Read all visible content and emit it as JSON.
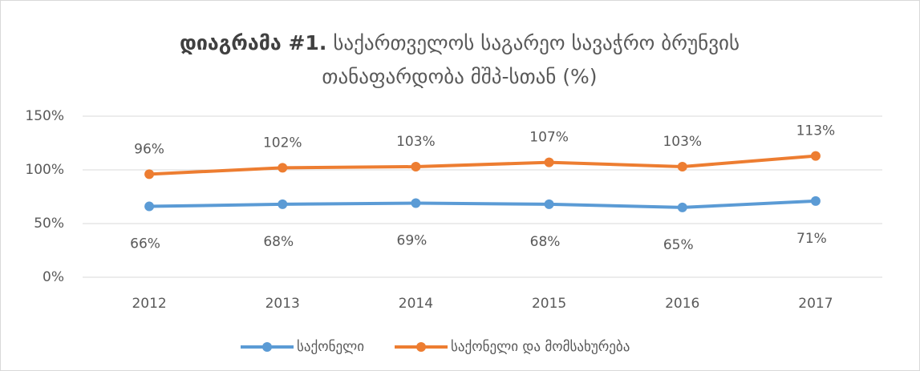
{
  "chart_data": {
    "type": "line",
    "title_prefix": "დიაგრამა #1.",
    "title_lines": [
      "საქართველოს საგარეო სავაჭრო ბრუნვის",
      "თანაფარდობა მშპ-სთან (%)"
    ],
    "categories": [
      "2012",
      "2013",
      "2014",
      "2015",
      "2016",
      "2017"
    ],
    "series": [
      {
        "name": "საქონელი",
        "color": "#5b9bd5",
        "values": [
          66,
          68,
          69,
          68,
          65,
          71
        ],
        "value_labels": [
          "66%",
          "68%",
          "69%",
          "68%",
          "65%",
          "71%"
        ]
      },
      {
        "name": "საქონელი და მომსახურება",
        "color": "#ed7d31",
        "values": [
          96,
          102,
          103,
          107,
          103,
          113
        ],
        "value_labels": [
          "96%",
          "102%",
          "103%",
          "107%",
          "103%",
          "113%"
        ]
      }
    ],
    "ylim": [
      0,
      150
    ],
    "yticks": [
      {
        "value": 0,
        "label": "0%"
      },
      {
        "value": 50,
        "label": "50%"
      },
      {
        "value": 100,
        "label": "100%"
      },
      {
        "value": 150,
        "label": "150%"
      }
    ],
    "grid": true,
    "legend": "bottom"
  }
}
